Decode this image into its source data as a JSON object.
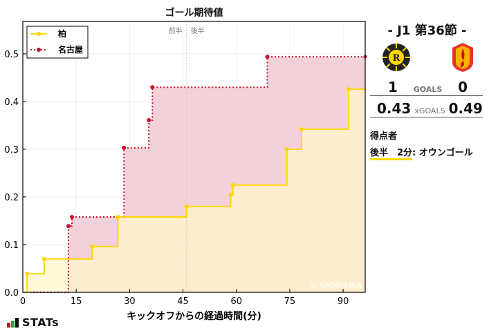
{
  "chart_data": {
    "type": "line",
    "step": "post",
    "title": "ゴール期待値",
    "xlabel": "キックオフからの経過時間(分)",
    "ylabel": "",
    "xlim": [
      0,
      96.2
    ],
    "ylim": [
      0,
      0.568
    ],
    "xticks": [
      0,
      15,
      30,
      45,
      60,
      75,
      90
    ],
    "yticks": [
      0.0,
      0.1,
      0.2,
      0.3,
      0.4,
      0.5
    ],
    "grid": true,
    "legend_position": "upper left",
    "half_marker": {
      "x": 46,
      "labels": [
        "前半",
        "後半"
      ]
    },
    "watermark": "© SPORTERIA",
    "series": [
      {
        "name": "柏",
        "color": "#FFD700",
        "fill": "#FFF6CC",
        "style": "solid",
        "x": [
          1.2,
          6,
          19.5,
          26.7,
          46,
          58.4,
          59,
          74.2,
          78.3,
          91.5
        ],
        "values": [
          0.039,
          0.07,
          0.096,
          0.158,
          0.18,
          0.204,
          0.225,
          0.3,
          0.342,
          0.426
        ]
      },
      {
        "name": "名古屋",
        "color": "#C8102E",
        "fill": "#F2CCD4",
        "style": "dotted",
        "x": [
          12.8,
          13.8,
          28.4,
          35.4,
          36.4,
          68.7
        ],
        "values": [
          0.139,
          0.158,
          0.303,
          0.361,
          0.43,
          0.494
        ]
      }
    ]
  },
  "side": {
    "round": "- J1 第36節 -",
    "home_logo": "kashiwa-reysol-crest",
    "away_logo": "nagoya-grampus-crest",
    "goals": {
      "home": "1",
      "label": "GOALS",
      "away": "0"
    },
    "xgoals": {
      "home": "0.43",
      "label": "xGOALS",
      "away": "0.49"
    },
    "scorers_title": "得点者",
    "scorers": [
      {
        "time": "後半　2分",
        "text": ": オウンゴール"
      }
    ]
  },
  "brand": {
    "name": "STATs"
  }
}
